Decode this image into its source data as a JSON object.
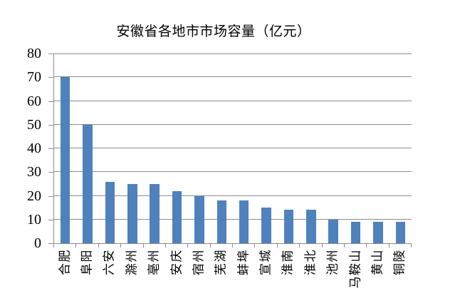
{
  "chart_data": {
    "type": "bar",
    "title": "安徽省各地市市场容量（亿元）",
    "categories": [
      "合肥",
      "阜阳",
      "六安",
      "滁州",
      "亳州",
      "安庆",
      "宿州",
      "芜湖",
      "蚌埠",
      "宣城",
      "淮南",
      "淮北",
      "池州",
      "马鞍山",
      "黄山",
      "铜陵"
    ],
    "values": [
      70,
      50,
      26,
      25,
      25,
      22,
      20,
      18,
      18,
      15,
      14,
      14,
      10,
      9,
      9,
      9
    ],
    "xlabel": "",
    "ylabel": "",
    "ylim": [
      0,
      80
    ],
    "yticks": [
      0,
      10,
      20,
      30,
      40,
      50,
      60,
      70,
      80
    ],
    "grid": true,
    "legend": false,
    "bar_color": "#4F81BD",
    "axis_color": "#8C8C8C",
    "gridline_color": "#8C8C8C",
    "background_color": "#FFFFFF"
  }
}
